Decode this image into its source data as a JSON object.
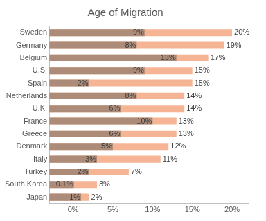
{
  "chart_data": {
    "type": "bar",
    "title": "Age of Migration",
    "orientation": "horizontal",
    "categories": [
      "Sweden",
      "Germany",
      "Belgium",
      "U.S.",
      "Spain",
      "Netherlands",
      "U.K.",
      "France",
      "Greece",
      "Denmark",
      "Italy",
      "Turkey",
      "South Korea",
      "Japan"
    ],
    "series": [
      {
        "color": "#ad8b79",
        "values": [
          9,
          8,
          13,
          9,
          2,
          8,
          6,
          10,
          6,
          5,
          3,
          2,
          0.1,
          1
        ],
        "value_labels": [
          "9%",
          "8%",
          "13%",
          "9%",
          "2%",
          "8%",
          "6%",
          "10%",
          "6%",
          "5%",
          "3%",
          "2%",
          "0.1%",
          "1%"
        ]
      },
      {
        "color": "#f5b594",
        "values": [
          20,
          19,
          17,
          15,
          15,
          14,
          14,
          13,
          13,
          12,
          11,
          7,
          3,
          2
        ],
        "value_labels": [
          "20%",
          "19%",
          "17%",
          "15%",
          "15%",
          "14%",
          "14%",
          "13%",
          "13%",
          "12%",
          "11%",
          "7%",
          "3%",
          "2%"
        ]
      }
    ],
    "xlim": [
      -3,
      22
    ],
    "xticks": [
      {
        "value": 0,
        "label": "0%"
      },
      {
        "value": 5,
        "label": "5%"
      },
      {
        "value": 10,
        "label": "10%"
      },
      {
        "value": 15,
        "label": "15%"
      },
      {
        "value": 20,
        "label": "20%"
      }
    ],
    "grid": false,
    "data_labels": true
  }
}
